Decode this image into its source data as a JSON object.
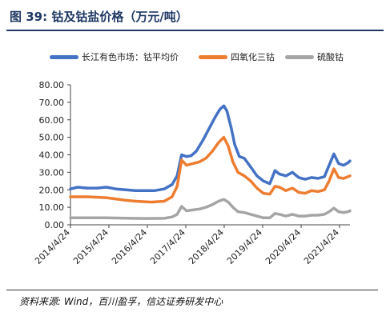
{
  "figure": {
    "title": "图 39:  钴及钴盐价格（万元/吨）",
    "source": "资料来源: Wind，百川盈孚，信达证券研发中心"
  },
  "colors": {
    "title": "#1f3864",
    "series1": "#4472c4",
    "series2": "#ed7d31",
    "series3": "#a5a5a5"
  },
  "chart_data": {
    "type": "line",
    "title": "",
    "xlabel": "",
    "ylabel": "",
    "ylim": [
      0,
      80
    ],
    "y_ticks": [
      "0.00",
      "10.00",
      "20.00",
      "30.00",
      "40.00",
      "50.00",
      "60.00",
      "70.00",
      "80.00"
    ],
    "x_ticks": [
      "2014/4/24",
      "2015/4/24",
      "2016/4/24",
      "2017/4/24",
      "2018/4/24",
      "2019/4/24",
      "2020/4/24",
      "2021/4/24"
    ],
    "grid": false,
    "legend_position": "top",
    "x_range": [
      "2014-04-24",
      "2021-08-01"
    ],
    "series": [
      {
        "name": "长江有色市场：钴平均价",
        "color": "#4472c4",
        "points": [
          [
            "2014-04-24",
            20.5
          ],
          [
            "2014-07-01",
            21.5
          ],
          [
            "2014-10-01",
            21.0
          ],
          [
            "2015-01-01",
            21.0
          ],
          [
            "2015-04-01",
            21.5
          ],
          [
            "2015-07-01",
            20.5
          ],
          [
            "2015-10-01",
            20.0
          ],
          [
            "2016-01-01",
            19.5
          ],
          [
            "2016-04-01",
            19.5
          ],
          [
            "2016-07-01",
            19.5
          ],
          [
            "2016-10-01",
            20.5
          ],
          [
            "2016-12-15",
            23.0
          ],
          [
            "2017-02-01",
            28.0
          ],
          [
            "2017-03-15",
            40.0
          ],
          [
            "2017-05-01",
            39.0
          ],
          [
            "2017-06-15",
            39.5
          ],
          [
            "2017-08-01",
            42.0
          ],
          [
            "2017-10-01",
            48.0
          ],
          [
            "2017-12-01",
            55.0
          ],
          [
            "2018-02-01",
            62.0
          ],
          [
            "2018-03-15",
            66.0
          ],
          [
            "2018-04-20",
            68.0
          ],
          [
            "2018-05-20",
            65.0
          ],
          [
            "2018-07-01",
            55.0
          ],
          [
            "2018-08-01",
            46.0
          ],
          [
            "2018-09-15",
            39.0
          ],
          [
            "2018-11-01",
            38.0
          ],
          [
            "2019-01-01",
            33.0
          ],
          [
            "2019-03-01",
            28.0
          ],
          [
            "2019-05-01",
            25.0
          ],
          [
            "2019-07-01",
            23.5
          ],
          [
            "2019-08-20",
            31.0
          ],
          [
            "2019-10-01",
            29.0
          ],
          [
            "2019-12-01",
            28.0
          ],
          [
            "2020-02-01",
            30.0
          ],
          [
            "2020-04-01",
            27.0
          ],
          [
            "2020-06-01",
            26.0
          ],
          [
            "2020-08-01",
            27.0
          ],
          [
            "2020-10-01",
            26.5
          ],
          [
            "2020-12-01",
            27.5
          ],
          [
            "2021-01-15",
            34.0
          ],
          [
            "2021-03-01",
            40.5
          ],
          [
            "2021-04-15",
            35.0
          ],
          [
            "2021-06-01",
            34.0
          ],
          [
            "2021-07-15",
            35.5
          ],
          [
            "2021-08-01",
            36.5
          ]
        ]
      },
      {
        "name": "四氧化三钴",
        "color": "#ed7d31",
        "points": [
          [
            "2014-04-24",
            16.0
          ],
          [
            "2014-10-01",
            16.0
          ],
          [
            "2015-04-01",
            15.5
          ],
          [
            "2015-10-01",
            14.0
          ],
          [
            "2016-01-01",
            13.5
          ],
          [
            "2016-06-01",
            13.0
          ],
          [
            "2016-10-01",
            13.5
          ],
          [
            "2016-12-15",
            16.0
          ],
          [
            "2017-02-01",
            22.0
          ],
          [
            "2017-03-15",
            37.0
          ],
          [
            "2017-05-01",
            34.0
          ],
          [
            "2017-07-01",
            35.0
          ],
          [
            "2017-09-01",
            36.0
          ],
          [
            "2017-11-01",
            38.0
          ],
          [
            "2018-01-01",
            42.0
          ],
          [
            "2018-03-01",
            47.0
          ],
          [
            "2018-04-20",
            50.0
          ],
          [
            "2018-06-01",
            45.0
          ],
          [
            "2018-07-15",
            36.0
          ],
          [
            "2018-09-01",
            30.0
          ],
          [
            "2018-11-01",
            28.0
          ],
          [
            "2019-01-01",
            25.0
          ],
          [
            "2019-03-01",
            21.0
          ],
          [
            "2019-05-01",
            18.0
          ],
          [
            "2019-07-01",
            17.5
          ],
          [
            "2019-08-20",
            22.0
          ],
          [
            "2019-10-01",
            21.5
          ],
          [
            "2019-12-01",
            19.5
          ],
          [
            "2020-02-01",
            21.0
          ],
          [
            "2020-04-01",
            18.5
          ],
          [
            "2020-06-01",
            18.0
          ],
          [
            "2020-08-01",
            19.5
          ],
          [
            "2020-10-01",
            19.0
          ],
          [
            "2020-12-01",
            20.0
          ],
          [
            "2021-01-15",
            25.0
          ],
          [
            "2021-03-01",
            32.0
          ],
          [
            "2021-04-15",
            27.0
          ],
          [
            "2021-06-01",
            26.5
          ],
          [
            "2021-07-15",
            27.5
          ],
          [
            "2021-08-01",
            28.0
          ]
        ]
      },
      {
        "name": "硫酸钴",
        "color": "#a5a5a5",
        "points": [
          [
            "2014-04-24",
            4.0
          ],
          [
            "2014-10-01",
            4.0
          ],
          [
            "2015-04-01",
            4.0
          ],
          [
            "2015-10-01",
            3.8
          ],
          [
            "2016-04-01",
            3.6
          ],
          [
            "2016-10-01",
            3.7
          ],
          [
            "2016-12-15",
            4.5
          ],
          [
            "2017-02-01",
            6.0
          ],
          [
            "2017-03-15",
            10.5
          ],
          [
            "2017-05-01",
            8.0
          ],
          [
            "2017-07-01",
            8.5
          ],
          [
            "2017-09-01",
            9.0
          ],
          [
            "2017-11-01",
            10.0
          ],
          [
            "2018-01-01",
            11.5
          ],
          [
            "2018-03-01",
            13.5
          ],
          [
            "2018-04-20",
            14.5
          ],
          [
            "2018-06-01",
            13.0
          ],
          [
            "2018-07-15",
            10.0
          ],
          [
            "2018-09-01",
            7.5
          ],
          [
            "2018-11-01",
            7.0
          ],
          [
            "2019-01-01",
            6.0
          ],
          [
            "2019-03-01",
            5.0
          ],
          [
            "2019-05-01",
            4.0
          ],
          [
            "2019-07-01",
            4.0
          ],
          [
            "2019-08-20",
            6.5
          ],
          [
            "2019-10-01",
            6.0
          ],
          [
            "2019-12-01",
            5.0
          ],
          [
            "2020-02-01",
            6.0
          ],
          [
            "2020-04-01",
            5.0
          ],
          [
            "2020-06-01",
            5.0
          ],
          [
            "2020-08-01",
            5.5
          ],
          [
            "2020-10-01",
            5.5
          ],
          [
            "2020-12-01",
            6.0
          ],
          [
            "2021-01-15",
            7.5
          ],
          [
            "2021-03-01",
            9.5
          ],
          [
            "2021-04-15",
            7.5
          ],
          [
            "2021-06-01",
            7.0
          ],
          [
            "2021-07-15",
            7.5
          ],
          [
            "2021-08-01",
            8.0
          ]
        ]
      }
    ]
  }
}
